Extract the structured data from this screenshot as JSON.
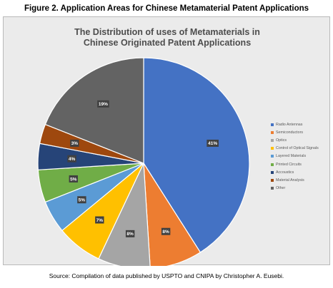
{
  "figure_title": "Figure 2. Application Areas for Chinese Metamaterial Patent Applications",
  "source_note": "Source: Compilation of data published by USPTO and CNIPA by Christopher A. Eusebi.",
  "chart_data": {
    "type": "pie",
    "title_lines": [
      "The Distribution of uses of Metamaterials in",
      "Chinese Originated Patent Applications"
    ],
    "slices": [
      {
        "label": "Radio Antennas",
        "value": 41,
        "display": "41%",
        "color": "#4472c4"
      },
      {
        "label": "Semiconductors",
        "value": 8,
        "display": "8%",
        "color": "#ed7d31"
      },
      {
        "label": "Optics",
        "value": 8,
        "display": "8%",
        "color": "#a5a5a5"
      },
      {
        "label": "Control of Optical Signals",
        "value": 7,
        "display": "7%",
        "color": "#ffc000"
      },
      {
        "label": "Layered Materials",
        "value": 5,
        "display": "5%",
        "color": "#5b9bd5"
      },
      {
        "label": "Printed Circuits",
        "value": 5,
        "display": "5%",
        "color": "#70ad47"
      },
      {
        "label": "Accoustics",
        "value": 4,
        "display": "4%",
        "color": "#264478"
      },
      {
        "label": "Material Analysis",
        "value": 3,
        "display": "3%",
        "color": "#9e480e"
      },
      {
        "label": "Other",
        "value": 19,
        "display": "19%",
        "color": "#636363"
      }
    ],
    "legend_position": "right"
  }
}
